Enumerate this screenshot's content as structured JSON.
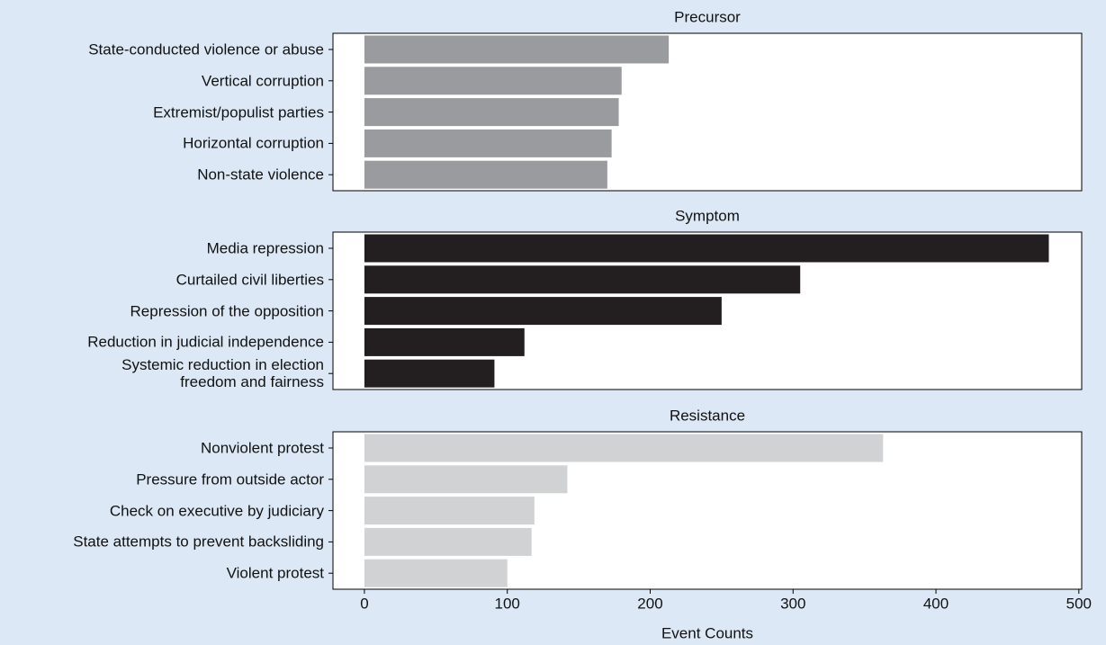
{
  "chart_data": [
    {
      "type": "barh",
      "title": "Precursor",
      "categories": [
        "State-conducted violence or abuse",
        "Vertical corruption",
        "Extremist/populist parties",
        "Horizontal corruption",
        "Non-state violence"
      ],
      "values": [
        213,
        180,
        178,
        173,
        170
      ],
      "color": "#9a9b9e",
      "xlim": [
        -22,
        502
      ]
    },
    {
      "type": "barh",
      "title": "Symptom",
      "categories": [
        "Media repression",
        "Curtailed civil liberties",
        "Repression of the opposition",
        "Reduction in judicial independence",
        "Systemic reduction in election\nfreedom and fairness"
      ],
      "values": [
        479,
        305,
        250,
        112,
        91
      ],
      "color": "#231f20",
      "xlim": [
        -22,
        502
      ]
    },
    {
      "type": "barh",
      "title": "Resistance",
      "categories": [
        "Nonviolent protest",
        "Pressure from outside actor",
        "Check on executive by judiciary",
        "State attempts to prevent backsliding",
        "Violent protest"
      ],
      "values": [
        363,
        142,
        119,
        117,
        100
      ],
      "color": "#d1d2d4",
      "xlim": [
        -22,
        502
      ],
      "xticks": [
        0,
        100,
        200,
        300,
        400,
        500
      ],
      "xlabel": "Event Counts"
    }
  ]
}
